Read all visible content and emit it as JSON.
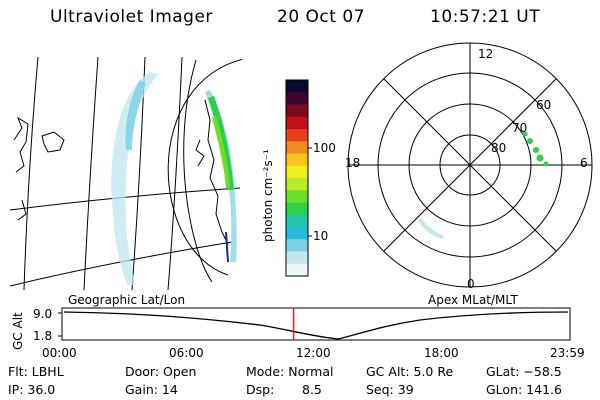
{
  "header": {
    "title": "Ultraviolet Imager",
    "date": "20 Oct 07",
    "time": "10:57:21 UT"
  },
  "geo_panel": {
    "label": "Geographic Lat/Lon"
  },
  "colorbar": {
    "unit_label": "photon cm⁻²s⁻¹",
    "ticks": [
      "100",
      "10"
    ],
    "colors": [
      "#0b0b2e",
      "#3a0630",
      "#7a0a1c",
      "#c2121c",
      "#e8401a",
      "#f08a1a",
      "#f7c21e",
      "#eef01e",
      "#b8ec28",
      "#6fde28",
      "#2ad04a",
      "#22c6a6",
      "#28b8dc",
      "#7cd2e4",
      "#c2e8ee",
      "#eef6f8"
    ]
  },
  "polar_panel": {
    "label": "Apex MLat/MLT",
    "mlt_labels": [
      "12",
      "18",
      "6",
      "0"
    ],
    "lat_labels": [
      "60",
      "70",
      "80"
    ]
  },
  "timeline": {
    "ylabel": "GC Alt",
    "ticks": [
      "9.0",
      "1.8"
    ],
    "time_labels": [
      "00:00",
      "06:00",
      "12:00",
      "18:00",
      "23:59"
    ],
    "marker_color": "#e8201c",
    "marker_fraction": 0.456
  },
  "info": {
    "flt": "Flt: LBHL",
    "ip": "IP: 36.0",
    "door": "Door: Open",
    "gain": "Gain: 14",
    "mode": "Mode: Normal",
    "dsp_key": "Dsp:",
    "dsp_val": "8.5",
    "gcalt": "GC Alt: 5.0 Re",
    "seq": "Seq: 39",
    "glat": "GLat: −58.5",
    "glon": "GLon: 141.6"
  }
}
